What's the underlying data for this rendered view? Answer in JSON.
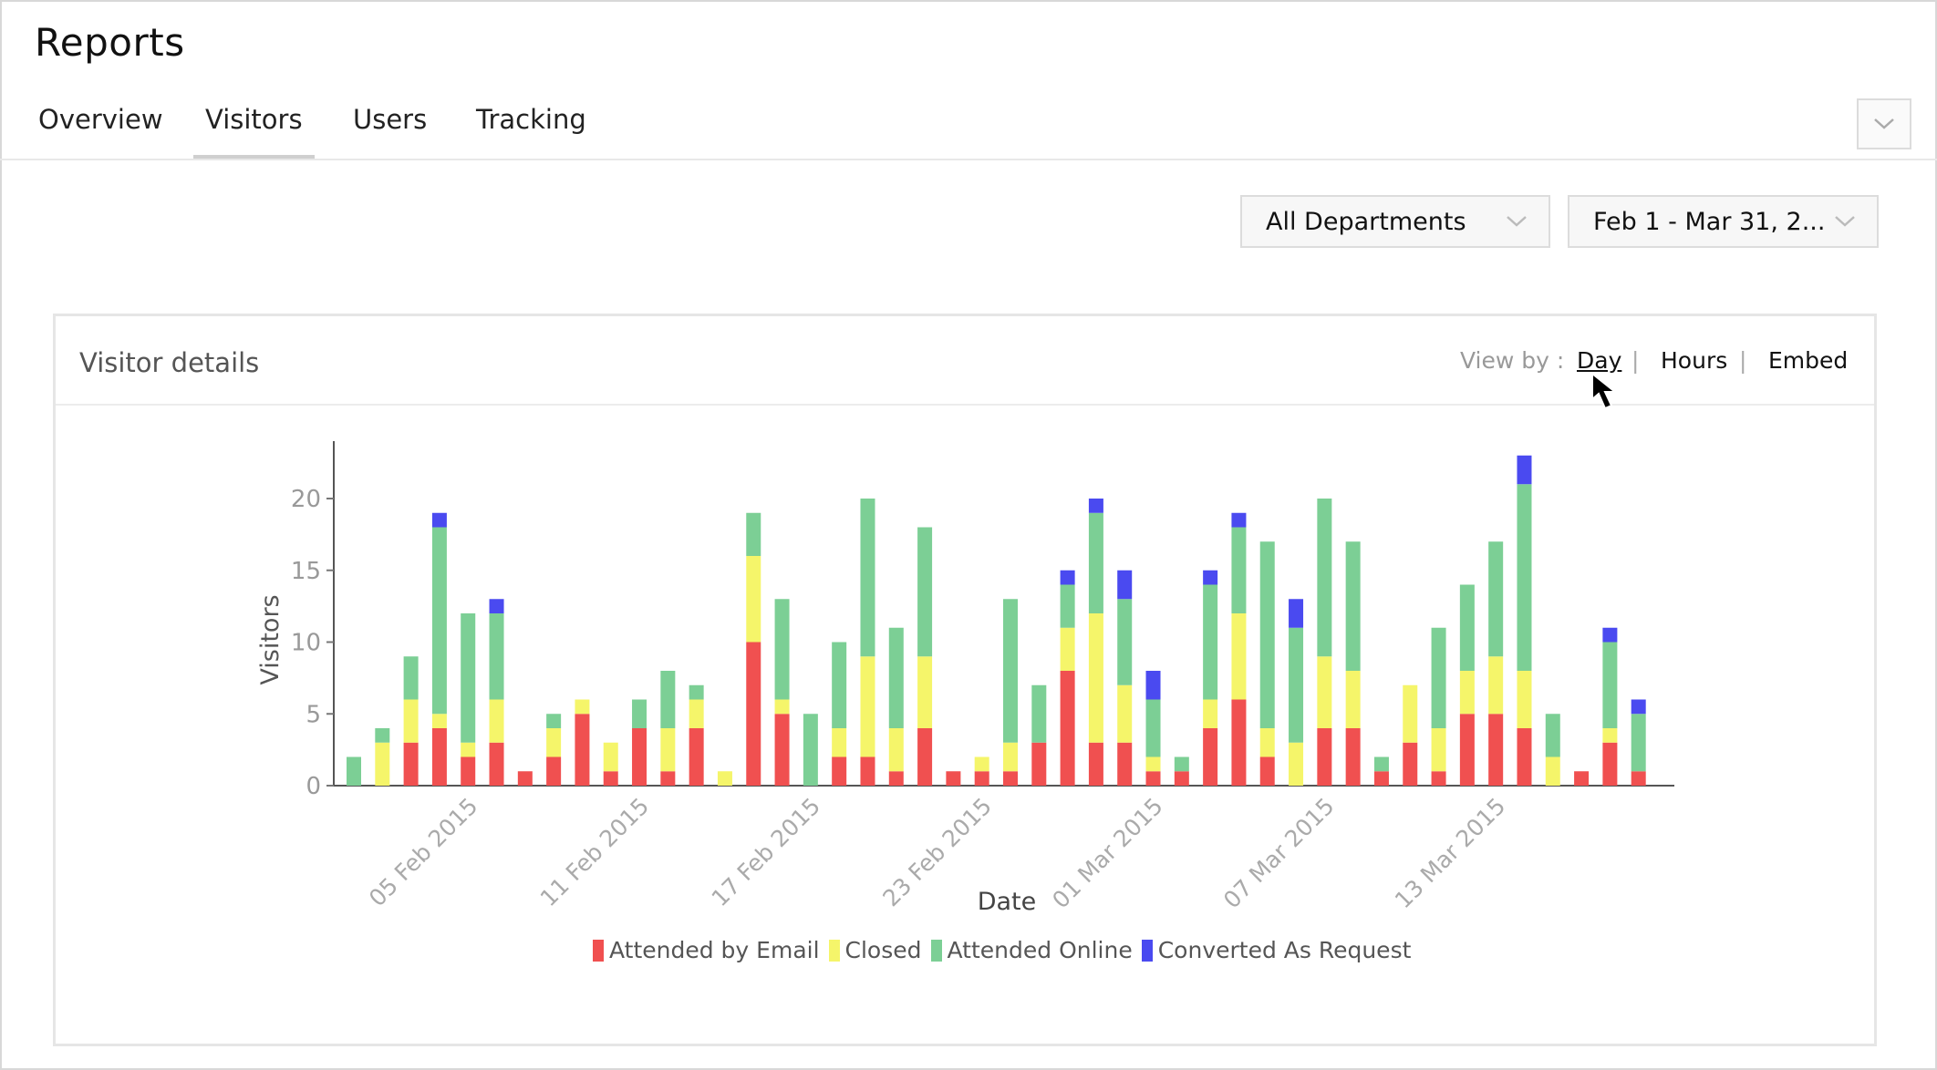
{
  "page": {
    "title": "Reports"
  },
  "tabs": [
    {
      "label": "Overview",
      "active": false
    },
    {
      "label": "Visitors",
      "active": true
    },
    {
      "label": "Users",
      "active": false
    },
    {
      "label": "Tracking",
      "active": false
    }
  ],
  "filters": {
    "department": "All Departments",
    "date_range": "Feb 1 - Mar 31, 2..."
  },
  "card": {
    "title": "Visitor details",
    "view_by_label": "View by :",
    "view_options": [
      "Day",
      "Hours",
      "Embed"
    ],
    "separator": "|"
  },
  "icons": {
    "collapse": "chevron-down-icon",
    "dropdown": "chevron-down-icon",
    "cursor": "mouse-pointer-icon"
  },
  "chart_data": {
    "type": "bar",
    "stacked": true,
    "xlabel": "Date",
    "ylabel": "Visitors",
    "ylim": [
      0,
      24
    ],
    "yticks": [
      0,
      5,
      10,
      15,
      20
    ],
    "x_tick_labels": [
      "05 Feb 2015",
      "11 Feb 2015",
      "17 Feb 2015",
      "23 Feb 2015",
      "01 Mar 2015",
      "07 Mar 2015",
      "13 Mar 2015"
    ],
    "x_tick_label_index": [
      4,
      10,
      16,
      22,
      28,
      34,
      40
    ],
    "grid": false,
    "legend_position": "bottom",
    "series": [
      {
        "name": "Attended by Email",
        "color": "#f05050",
        "values": [
          0,
          0,
          3,
          4,
          2,
          3,
          1,
          2,
          5,
          1,
          4,
          1,
          4,
          0,
          10,
          5,
          0,
          2,
          2,
          1,
          4,
          1,
          1,
          1,
          3,
          8,
          3,
          3,
          1,
          1,
          4,
          6,
          2,
          0,
          4,
          4,
          1,
          3,
          1,
          5,
          5,
          4,
          0,
          1,
          3,
          1
        ]
      },
      {
        "name": "Closed",
        "color": "#f5f56a",
        "values": [
          0,
          3,
          3,
          1,
          1,
          3,
          0,
          2,
          1,
          2,
          0,
          3,
          2,
          1,
          6,
          1,
          0,
          2,
          7,
          3,
          5,
          0,
          1,
          2,
          0,
          3,
          9,
          4,
          1,
          0,
          2,
          6,
          2,
          3,
          5,
          4,
          0,
          4,
          3,
          3,
          4,
          4,
          2,
          0,
          1,
          0
        ]
      },
      {
        "name": "Attended Online",
        "color": "#7ccf95",
        "values": [
          2,
          1,
          3,
          13,
          9,
          6,
          0,
          1,
          0,
          0,
          2,
          4,
          1,
          0,
          3,
          7,
          5,
          6,
          11,
          7,
          9,
          0,
          0,
          10,
          4,
          3,
          7,
          6,
          4,
          1,
          8,
          6,
          13,
          8,
          11,
          9,
          1,
          0,
          7,
          6,
          8,
          13,
          3,
          0,
          6,
          4
        ]
      },
      {
        "name": "Converted As Request",
        "color": "#4a4af0",
        "values": [
          0,
          0,
          0,
          1,
          0,
          1,
          0,
          0,
          0,
          0,
          0,
          0,
          0,
          0,
          0,
          0,
          0,
          0,
          0,
          0,
          0,
          0,
          0,
          0,
          0,
          1,
          1,
          2,
          2,
          0,
          1,
          1,
          0,
          2,
          0,
          0,
          0,
          0,
          0,
          0,
          0,
          2,
          0,
          0,
          1,
          1
        ]
      }
    ]
  }
}
